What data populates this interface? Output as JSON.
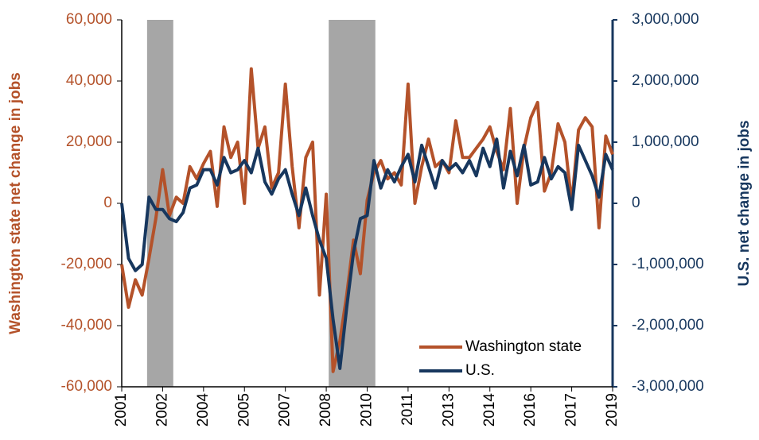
{
  "chart_data": {
    "type": "line",
    "y_label": "Washington state net change in jobs",
    "y2_label": "U.S.  net change in jobs",
    "x": [
      2001,
      2001.25,
      2001.5,
      2001.75,
      2002,
      2002.25,
      2002.5,
      2002.75,
      2003,
      2003.25,
      2003.5,
      2003.75,
      2004,
      2004.25,
      2004.5,
      2004.75,
      2005,
      2005.25,
      2005.5,
      2005.75,
      2006,
      2006.25,
      2006.5,
      2006.75,
      2007,
      2007.25,
      2007.5,
      2007.75,
      2008,
      2008.25,
      2008.5,
      2008.75,
      2009,
      2009.25,
      2009.5,
      2009.75,
      2010,
      2010.25,
      2010.5,
      2010.75,
      2011,
      2011.25,
      2011.5,
      2011.75,
      2012,
      2012.25,
      2012.5,
      2012.75,
      2013,
      2013.25,
      2013.5,
      2013.75,
      2014,
      2014.25,
      2014.5,
      2014.75,
      2015,
      2015.25,
      2015.5,
      2015.75,
      2016,
      2016.25,
      2016.5,
      2016.75,
      2017,
      2017.25,
      2017.5,
      2017.75,
      2018,
      2018.25,
      2018.5,
      2018.75,
      2019
    ],
    "series": [
      {
        "name": "Washington state",
        "color": "#b4522a",
        "axis": "y",
        "values": [
          -20000,
          -34000,
          -25000,
          -30000,
          -18000,
          -5000,
          11000,
          -4000,
          2000,
          0,
          12000,
          8000,
          13000,
          17000,
          -1000,
          25000,
          15000,
          20000,
          0,
          44000,
          18000,
          25000,
          5000,
          10000,
          39000,
          12000,
          -8000,
          15000,
          20000,
          -30000,
          3000,
          -55000,
          -45000,
          -30000,
          -12000,
          -23000,
          1000,
          10000,
          14000,
          8000,
          10000,
          6000,
          39000,
          0,
          12000,
          21000,
          12000,
          14000,
          10000,
          27000,
          15000,
          15000,
          18000,
          21000,
          25000,
          17000,
          11000,
          31000,
          0,
          18000,
          28000,
          33000,
          4000,
          10000,
          26000,
          20000,
          0,
          24000,
          28000,
          25000,
          -8000,
          22000,
          16000
        ]
      },
      {
        "name": "U.S.",
        "color": "#17375e",
        "axis": "y2",
        "values": [
          0,
          -900000,
          -1100000,
          -1000000,
          100000,
          -100000,
          -100000,
          -250000,
          -300000,
          -150000,
          250000,
          300000,
          550000,
          550000,
          300000,
          750000,
          500000,
          550000,
          700000,
          500000,
          900000,
          350000,
          150000,
          400000,
          550000,
          150000,
          -200000,
          250000,
          -200000,
          -600000,
          -900000,
          -1900000,
          -2700000,
          -1700000,
          -800000,
          -250000,
          -200000,
          700000,
          250000,
          550000,
          350000,
          600000,
          800000,
          350000,
          950000,
          600000,
          250000,
          700000,
          550000,
          650000,
          500000,
          700000,
          450000,
          900000,
          600000,
          1050000,
          250000,
          850000,
          450000,
          950000,
          300000,
          350000,
          750000,
          400000,
          600000,
          500000,
          -100000,
          950000,
          700000,
          450000,
          100000,
          800000,
          550000
        ]
      }
    ],
    "shaded_periods": [
      [
        2001.93,
        2002.89
      ],
      [
        2008.59,
        2010.3
      ]
    ],
    "shade_color": "#a6a6a6",
    "xlim": [
      2001,
      2019
    ],
    "xticks": [
      2001,
      {
        "value": 2002.5,
        "label": "2002"
      },
      2004,
      {
        "value": 2005.5,
        "label": "2005"
      },
      2007,
      {
        "value": 2008.5,
        "label": "2008"
      },
      2010,
      {
        "value": 2011.5,
        "label": "2011"
      },
      2013,
      {
        "value": 2014.5,
        "label": "2014"
      },
      2016,
      {
        "value": 2017.5,
        "label": "2017"
      },
      2019
    ],
    "ylim": [
      -60000,
      60000
    ],
    "yticks": [
      {
        "value": -60000,
        "label": "-60,000"
      },
      {
        "value": -40000,
        "label": "-40,000"
      },
      {
        "value": -20000,
        "label": "-20,000"
      },
      0,
      {
        "value": 20000,
        "label": "20,000"
      },
      {
        "value": 40000,
        "label": "40,000"
      },
      {
        "value": 60000,
        "label": "60,000"
      }
    ],
    "y2lim": [
      -3000000,
      3000000
    ],
    "y2ticks": [
      {
        "value": -3000000,
        "label": "-3,000,000"
      },
      {
        "value": -2000000,
        "label": "-2,000,000"
      },
      {
        "value": -1000000,
        "label": "-1,000,000"
      },
      0,
      {
        "value": 1000000,
        "label": "1,000,000"
      },
      {
        "value": 2000000,
        "label": "2,000,000"
      },
      {
        "value": 3000000,
        "label": "3,000,000"
      }
    ],
    "legend": "lower right"
  }
}
